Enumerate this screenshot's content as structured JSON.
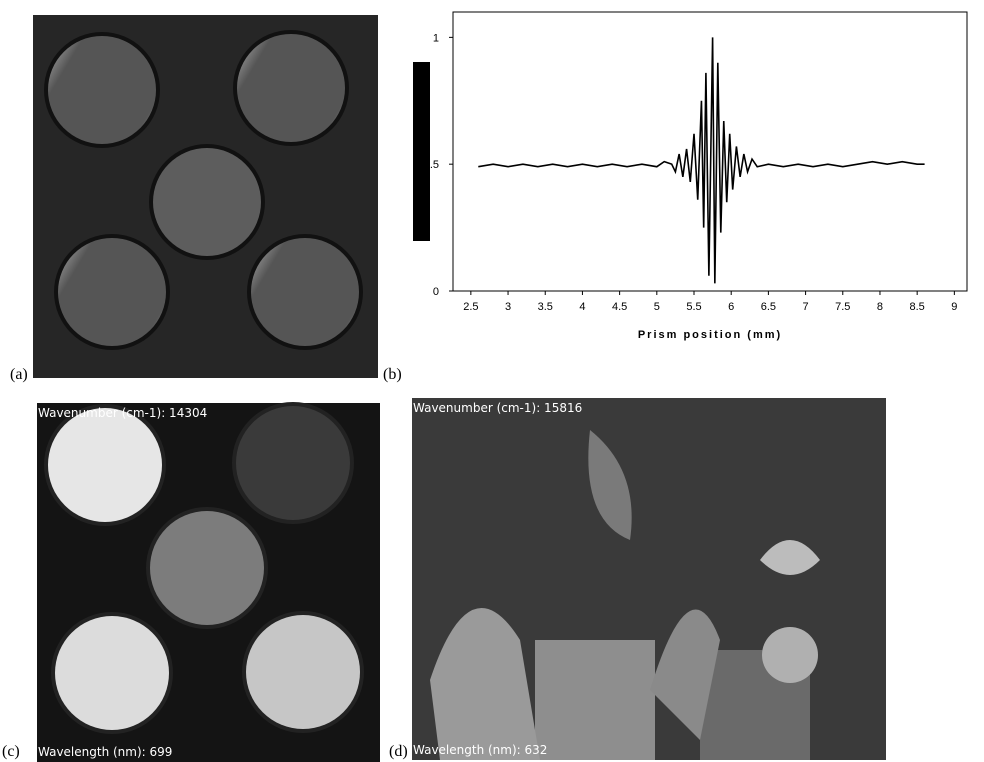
{
  "chart_data": {
    "type": "line",
    "xlabel": "Prism position (mm)",
    "x": [
      2.6,
      2.8,
      3.0,
      3.2,
      3.4,
      3.6,
      3.8,
      4.0,
      4.2,
      4.4,
      4.6,
      4.8,
      5.0,
      5.1,
      5.2,
      5.25,
      5.3,
      5.35,
      5.4,
      5.45,
      5.5,
      5.55,
      5.6,
      5.63,
      5.66,
      5.7,
      5.75,
      5.78,
      5.82,
      5.86,
      5.9,
      5.94,
      5.98,
      6.02,
      6.07,
      6.12,
      6.17,
      6.22,
      6.28,
      6.35,
      6.5,
      6.7,
      6.9,
      7.1,
      7.3,
      7.5,
      7.7,
      7.9,
      8.1,
      8.3,
      8.5,
      8.6
    ],
    "series": [
      {
        "color": "#000000",
        "values": [
          0.49,
          0.5,
          0.49,
          0.5,
          0.49,
          0.5,
          0.49,
          0.5,
          0.49,
          0.5,
          0.49,
          0.5,
          0.49,
          0.51,
          0.5,
          0.47,
          0.54,
          0.45,
          0.56,
          0.43,
          0.62,
          0.36,
          0.75,
          0.25,
          0.86,
          0.06,
          1.0,
          0.03,
          0.9,
          0.23,
          0.67,
          0.35,
          0.62,
          0.4,
          0.57,
          0.45,
          0.54,
          0.47,
          0.52,
          0.49,
          0.5,
          0.49,
          0.5,
          0.49,
          0.5,
          0.49,
          0.5,
          0.51,
          0.5,
          0.51,
          0.5,
          0.5
        ]
      }
    ],
    "xlim": [
      2.26,
      9.17
    ],
    "xticks": [
      2.5,
      3,
      3.5,
      4,
      4.5,
      5,
      5.5,
      6,
      6.5,
      7,
      7.5,
      8,
      8.5,
      9
    ],
    "ylim": [
      0,
      1.1
    ],
    "yticks": [
      0,
      0.5,
      1
    ]
  },
  "figure": {
    "labels": [
      "(a)",
      "(b)",
      "(c)",
      "(d)"
    ],
    "panel_c": {
      "wavenumber": "Wavenumber (cm-1): 14304",
      "wavelength": "Wavelength (nm): 699"
    },
    "panel_d": {
      "wavenumber": "Wavenumber (cm-1): 15816",
      "wavelength": "Wavelength (nm): 632"
    }
  }
}
